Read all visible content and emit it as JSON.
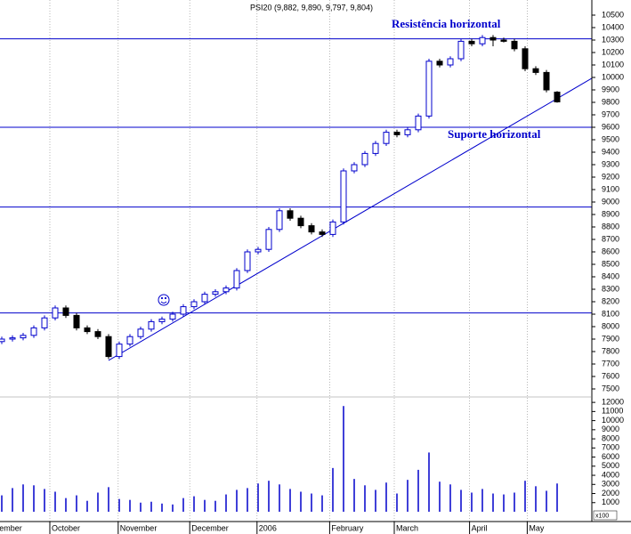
{
  "chart_data": {
    "type": "candlestick",
    "title": "PSI20 (9,882, 9,890, 9,797, 9,804)",
    "annotations": [
      "Resistência horizontal",
      "Suporte horizontal"
    ],
    "volume_unit_label": "x100",
    "candle_up_color": "#0000cc",
    "candle_down_color": "#000000",
    "line_color": "#0000cc",
    "volume_color": "#0000cc",
    "open": [
      7880,
      7900,
      7910,
      7930,
      7990,
      8070,
      8150,
      8090,
      7990,
      7960,
      7920,
      7760,
      7860,
      7920,
      7980,
      8040,
      8060,
      8100,
      8160,
      8200,
      8260,
      8280,
      8310,
      8450,
      8600,
      8620,
      8780,
      8930,
      8870,
      8810,
      8760,
      8740,
      8840,
      9250,
      9300,
      9390,
      9470,
      9560,
      9540,
      9580,
      9690,
      10130,
      10100,
      10150,
      10290,
      10270,
      10320,
      10300,
      10290,
      10230,
      10070,
      10040,
      9882
    ],
    "high": [
      7920,
      7930,
      7950,
      8010,
      8090,
      8170,
      8170,
      8110,
      8010,
      7980,
      7940,
      7880,
      7940,
      8000,
      8060,
      8080,
      8120,
      8180,
      8220,
      8280,
      8300,
      8330,
      8470,
      8620,
      8640,
      8800,
      8950,
      8950,
      8890,
      8830,
      8780,
      8860,
      9270,
      9320,
      9410,
      9490,
      9580,
      9580,
      9600,
      9710,
      10150,
      10150,
      10170,
      10310,
      10310,
      10340,
      10340,
      10320,
      10310,
      10250,
      10090,
      10060,
      9890
    ],
    "low": [
      7860,
      7880,
      7890,
      7910,
      7970,
      8050,
      8070,
      7970,
      7940,
      7900,
      7740,
      7740,
      7840,
      7900,
      7960,
      8020,
      8040,
      8080,
      8140,
      8180,
      8240,
      8260,
      8290,
      8430,
      8580,
      8600,
      8760,
      8850,
      8790,
      8740,
      8720,
      8720,
      8820,
      9230,
      9280,
      9370,
      9450,
      9520,
      9520,
      9560,
      9670,
      10080,
      10080,
      10130,
      10250,
      10250,
      10250,
      10280,
      10210,
      10050,
      10020,
      9880,
      9797
    ],
    "close": [
      7900,
      7910,
      7930,
      7990,
      8070,
      8150,
      8090,
      7990,
      7960,
      7920,
      7760,
      7860,
      7920,
      7980,
      8040,
      8060,
      8100,
      8160,
      8200,
      8260,
      8280,
      8310,
      8450,
      8600,
      8620,
      8780,
      8930,
      8870,
      8810,
      8760,
      8740,
      8840,
      9250,
      9300,
      9390,
      9470,
      9560,
      9540,
      9580,
      9690,
      10130,
      10100,
      10150,
      10290,
      10270,
      10320,
      10300,
      10290,
      10230,
      10070,
      10040,
      9900,
      9804
    ],
    "volume": [
      1800,
      2600,
      3000,
      2900,
      2500,
      2200,
      1500,
      1800,
      1200,
      2100,
      2700,
      1400,
      1300,
      1000,
      1100,
      900,
      800,
      1500,
      1700,
      1300,
      1200,
      1900,
      2400,
      2600,
      3100,
      3400,
      3000,
      2500,
      2200,
      2000,
      1800,
      4800,
      11600,
      3600,
      2900,
      2400,
      3200,
      2000,
      3500,
      4600,
      6500,
      3300,
      3000,
      2400,
      2100,
      2500,
      2000,
      1900,
      2100,
      3400,
      2800,
      2300,
      3100
    ],
    "xticks": [
      {
        "value": -0.4,
        "label": "ember"
      },
      {
        "value": 4.5,
        "label": "October"
      },
      {
        "value": 10.9,
        "label": "November"
      },
      {
        "value": 17.6,
        "label": "December"
      },
      {
        "value": 23.9,
        "label": "2006"
      },
      {
        "value": 30.7,
        "label": "February"
      },
      {
        "value": 36.75,
        "label": "March"
      },
      {
        "value": 43.8,
        "label": "April"
      },
      {
        "value": 49.2,
        "label": "May"
      }
    ],
    "ylim": [
      7450,
      10600
    ],
    "yticks": [
      7500,
      7600,
      7700,
      7800,
      7900,
      8000,
      8100,
      8200,
      8300,
      8400,
      8500,
      8600,
      8700,
      8800,
      8900,
      9000,
      9100,
      9200,
      9300,
      9400,
      9500,
      9600,
      9700,
      9800,
      9900,
      10000,
      10100,
      10200,
      10300,
      10400,
      10500
    ],
    "volume_ylim": [
      0,
      12500
    ],
    "volume_yticks": [
      1000,
      2000,
      3000,
      4000,
      5000,
      6000,
      7000,
      8000,
      9000,
      10000,
      11000,
      12000
    ],
    "hlines": [
      10310,
      9600,
      8960,
      8110
    ],
    "trendline": {
      "x": [
        10,
        55.25
      ],
      "y": [
        7729,
        9993
      ]
    }
  }
}
